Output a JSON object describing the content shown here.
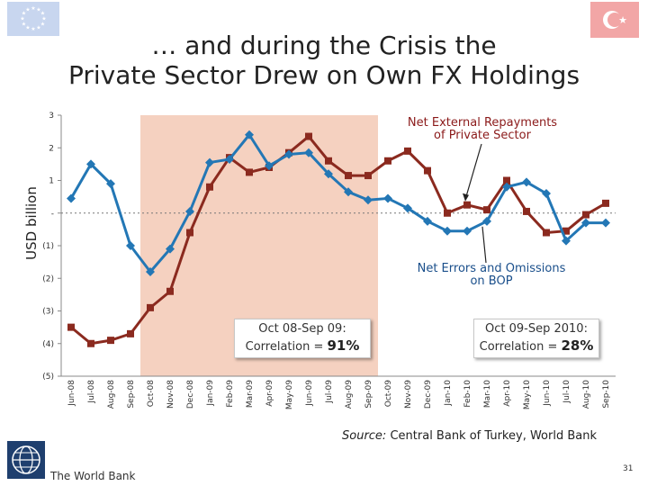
{
  "title_line1": "… and during the Crisis the",
  "title_line2": "Private Sector Drew on Own FX Holdings",
  "annotations": {
    "red_label": "Net External Repayments of Private Sector",
    "blue_label": "Net Errors and Omissions on BOP",
    "box1_text": "Oct 08-Sep 09: Correlation = ",
    "box1_value": "91%",
    "box2_text": "Oct 09-Sep 2010: Correlation = ",
    "box2_value": "28%"
  },
  "source_label": "Source:",
  "source_text": "Central Bank of Turkey, World Bank",
  "logo_text": "The World Bank",
  "slide_number": "31",
  "colors": {
    "red": "#8b2a1f",
    "blue": "#2377b5",
    "shade": "#f3c9b5"
  },
  "chart_data": {
    "type": "line",
    "ylabel": "USD billion",
    "ylim": [
      -5,
      3
    ],
    "yticks": [
      3,
      2,
      1,
      0,
      -1,
      -2,
      -3,
      -4,
      -5
    ],
    "ytick_labels": [
      "3",
      "2",
      "1",
      "-",
      "(1)",
      "(2)",
      "(3)",
      "(4)",
      "(5)"
    ],
    "categories": [
      "Jun-08",
      "Jul-08",
      "Aug-08",
      "Sep-08",
      "Oct-08",
      "Nov-08",
      "Dec-08",
      "Jan-09",
      "Feb-09",
      "Mar-09",
      "Apr-09",
      "May-09",
      "Jun-09",
      "Jul-09",
      "Aug-09",
      "Sep-09",
      "Oct-09",
      "Nov-09",
      "Dec-09",
      "Jan-10",
      "Feb-10",
      "Mar-10",
      "Apr-10",
      "May-10",
      "Jun-10",
      "Jul-10",
      "Aug-10",
      "Sep-10"
    ],
    "shaded_range": [
      "Oct-08",
      "Sep-09"
    ],
    "series": [
      {
        "name": "Net External Repayments of Private Sector",
        "values": [
          -3.5,
          -4.0,
          -3.9,
          -3.7,
          -2.9,
          -2.4,
          -0.6,
          0.8,
          1.7,
          1.25,
          1.4,
          1.85,
          2.35,
          1.6,
          1.15,
          1.15,
          1.6,
          1.9,
          1.3,
          0.0,
          0.25,
          0.1,
          1.0,
          0.05,
          -0.6,
          -0.55,
          -0.05,
          0.3
        ]
      },
      {
        "name": "Net Errors and Omissions on BOP",
        "values": [
          0.45,
          1.5,
          0.9,
          -1.0,
          -1.8,
          -1.1,
          0.05,
          1.55,
          1.65,
          2.4,
          1.45,
          1.8,
          1.85,
          1.2,
          0.65,
          0.4,
          0.45,
          0.15,
          -0.25,
          -0.55,
          -0.55,
          -0.25,
          0.8,
          0.95,
          0.6,
          -0.85,
          -0.3,
          -0.3
        ]
      }
    ]
  }
}
